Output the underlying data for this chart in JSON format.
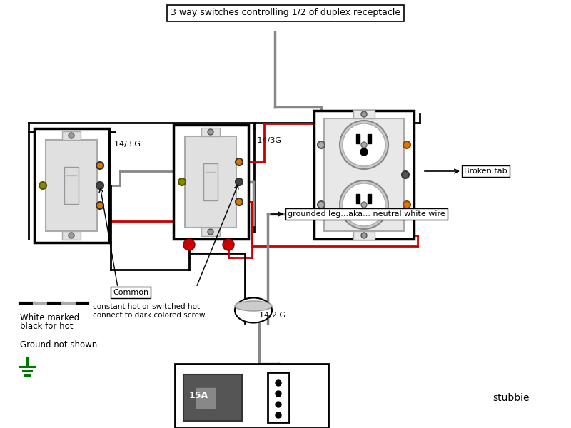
{
  "title": "3 way switches controlling 1/2 of duplex receptacle",
  "title_fontsize": 9,
  "bg_color": "#ffffff",
  "wire_black": "#000000",
  "wire_red": "#cc0000",
  "wire_gray": "#888888",
  "screw_orange": "#cc6600",
  "screw_orange_fill": "#dd7700",
  "label_143G_1": "14/3 G",
  "label_143G_2": "- 14/3G",
  "label_142G": "14/2 G",
  "label_common": "Common",
  "label_common2": "constant hot or switched hot",
  "label_common3": "connect to dark colored screw",
  "label_broken": "Broken tab",
  "label_neutral": "grounded leg...aka... neutral white wire",
  "label_stubbie": "stubbie",
  "label_15A": "15A",
  "legend_text1": "White marked",
  "legend_text2": "black for hot",
  "legend_text3": "Ground not shown"
}
